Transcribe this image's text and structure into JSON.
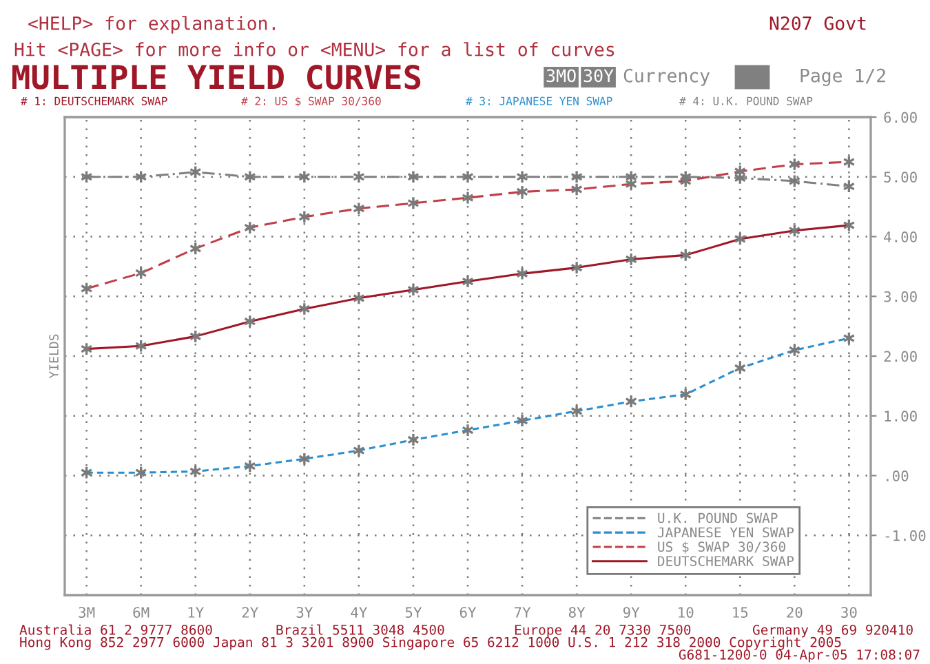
{
  "chart_data": {
    "type": "line",
    "title": "MULTIPLE YIELD CURVES",
    "ylabel": "YIELDS",
    "annotations": [
      "<HELP> for explanation.",
      "N207 Govt",
      "Hit <PAGE> for more info or <MENU> for a list of curves",
      "3MO",
      "30Y",
      "Currency",
      "Page 1/2",
      "# 1: DEUTSCHEMARK SWAP",
      "# 2: US $ SWAP 30/360",
      "# 3: JAPANESE YEN SWAP",
      "# 4: U.K. POUND SWAP",
      "Australia 61 2 9777 8600",
      "Brazil 5511 3048 4500",
      "Europe 44 20 7330 7500",
      "Germany 49 69 920410",
      "Hong Kong 852 2977 6000 Japan 81 3 3201 8900 Singapore 65 6212 1000 U.S. 1 212 318 2000 Copyright 2005",
      "G681-1200-0 04-Apr-05 17:08:07"
    ],
    "categories": [
      "3M",
      "6M",
      "1Y",
      "2Y",
      "3Y",
      "4Y",
      "5Y",
      "6Y",
      "7Y",
      "8Y",
      "9Y",
      "10",
      "15",
      "20",
      "30"
    ],
    "series": [
      {
        "name": "U.K. POUND SWAP",
        "color": "#808080",
        "line_style": "dashdot",
        "values": [
          5.0,
          5.0,
          5.08,
          5.0,
          5.0,
          5.0,
          5.0,
          5.0,
          5.0,
          5.0,
          5.0,
          5.0,
          4.98,
          4.93,
          4.84
        ]
      },
      {
        "name": "JAPANESE YEN SWAP",
        "color": "#2a8fd0",
        "line_style": "dotted",
        "values": [
          0.05,
          0.05,
          0.07,
          0.16,
          0.28,
          0.42,
          0.6,
          0.76,
          0.92,
          1.08,
          1.24,
          1.36,
          1.8,
          2.1,
          2.3
        ]
      },
      {
        "name": "US $ SWAP 30/360",
        "color": "#c0404a",
        "line_style": "dashed",
        "values": [
          3.13,
          3.39,
          3.8,
          4.15,
          4.33,
          4.47,
          4.56,
          4.65,
          4.75,
          4.79,
          4.88,
          4.93,
          5.09,
          5.21,
          5.25
        ]
      },
      {
        "name": "DEUTSCHEMARK SWAP",
        "color": "#a01828",
        "line_style": "solid",
        "values": [
          2.12,
          2.17,
          2.33,
          2.58,
          2.79,
          2.97,
          3.11,
          3.25,
          3.38,
          3.48,
          3.62,
          3.69,
          3.96,
          4.1,
          4.19
        ]
      }
    ],
    "marker": "cross",
    "ylim": [
      -2,
      6
    ],
    "yticks": [
      {
        "value": -1,
        "label": "-1.00"
      },
      {
        "value": 0,
        "label": ".00"
      },
      {
        "value": 1,
        "label": "1.00"
      },
      {
        "value": 2,
        "label": "2.00"
      },
      {
        "value": 3,
        "label": "3.00"
      },
      {
        "value": 4,
        "label": "4.00"
      },
      {
        "value": 5,
        "label": "5.00"
      },
      {
        "value": 6,
        "label": "6.00"
      }
    ],
    "grid": true,
    "legend": "bottom right"
  }
}
